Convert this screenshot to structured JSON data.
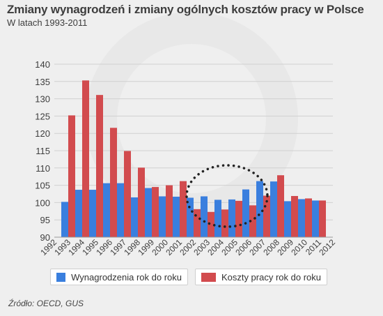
{
  "title": "Zmiany wynagrodzeń i zmiany ogólnych kosztów pracy w Polsce",
  "subtitle": "W latach 1993-2011",
  "source": "Źródło: OECD, GUS",
  "colors": {
    "wages": "#3a7fde",
    "costs": "#d24b4e",
    "grid": "#d0d0d0",
    "text": "#3d3d3d"
  },
  "chart_data": {
    "type": "bar",
    "ylim": [
      90,
      140
    ],
    "yticks": [
      90,
      95,
      100,
      105,
      110,
      115,
      120,
      125,
      130,
      135,
      140
    ],
    "xticks": [
      "1992",
      "1993",
      "1994",
      "1995",
      "1996",
      "1997",
      "1998",
      "1999",
      "2000",
      "2001",
      "2002",
      "2003",
      "2004",
      "2005",
      "2006",
      "2007",
      "2008",
      "2009",
      "2010",
      "2011",
      "2012"
    ],
    "categories": [
      "1993",
      "1994",
      "1995",
      "1996",
      "1997",
      "1998",
      "1999",
      "2000",
      "2001",
      "2002",
      "2003",
      "2004",
      "2005",
      "2006",
      "2007",
      "2008",
      "2009",
      "2010",
      "2011"
    ],
    "series": [
      {
        "name": "Wynagrodzenia rok do roku",
        "values": [
          100.2,
          103.7,
          103.7,
          105.6,
          105.6,
          101.5,
          104.2,
          101.8,
          101.7,
          101.4,
          101.8,
          100.8,
          100.9,
          103.8,
          106.2,
          106.1,
          100.4,
          101.0,
          100.6
        ]
      },
      {
        "name": "Koszty pracy rok do roku",
        "values": [
          125.2,
          135.3,
          131.1,
          121.6,
          114.9,
          110.1,
          104.5,
          105.0,
          106.2,
          98.1,
          97.3,
          98.0,
          100.5,
          99.2,
          102.0,
          107.9,
          101.9,
          101.2,
          100.6
        ]
      }
    ]
  }
}
